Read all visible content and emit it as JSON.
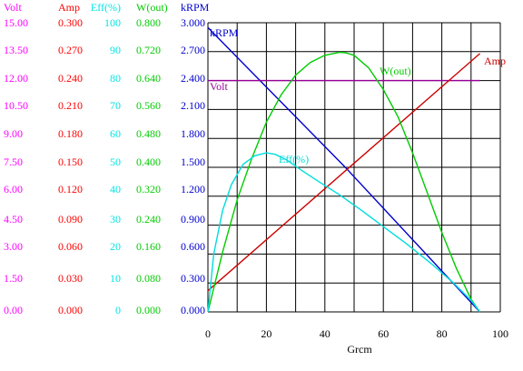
{
  "chart_data": {
    "type": "line",
    "xlabel": "Grcm",
    "x_ticks": [
      "0",
      "20",
      "40",
      "60",
      "80",
      "100"
    ],
    "xlim": [
      0,
      100
    ],
    "axis_scales": [
      {
        "key": "volt",
        "header": "Volt",
        "color": "#ff00ff",
        "min": 0,
        "max": 15,
        "ticks": [
          "15.00",
          "13.50",
          "12.00",
          "10.50",
          "9.00",
          "7.50",
          "6.00",
          "4.50",
          "3.00",
          "1.50",
          "0.00"
        ]
      },
      {
        "key": "amp",
        "header": "Amp",
        "color": "#ff0000",
        "min": 0,
        "max": 0.3,
        "ticks": [
          "0.300",
          "0.270",
          "0.240",
          "0.210",
          "0.180",
          "0.150",
          "0.120",
          "0.090",
          "0.060",
          "0.030",
          "0.000"
        ]
      },
      {
        "key": "eff",
        "header": "Eff(%)",
        "color": "#00e5e5",
        "min": 0,
        "max": 100,
        "ticks": [
          "100",
          "90",
          "80",
          "70",
          "60",
          "50",
          "40",
          "30",
          "20",
          "10",
          "0"
        ]
      },
      {
        "key": "wout",
        "header": "W(out)",
        "color": "#00cc00",
        "min": 0,
        "max": 0.8,
        "ticks": [
          "0.800",
          "0.720",
          "0.640",
          "0.560",
          "0.480",
          "0.400",
          "0.320",
          "0.240",
          "0.160",
          "0.080",
          "0.000"
        ]
      },
      {
        "key": "krpm",
        "header": "kRPM",
        "color": "#0000cc",
        "min": 0,
        "max": 3.0,
        "ticks": [
          "3.000",
          "2.700",
          "2.400",
          "2.100",
          "1.800",
          "1.500",
          "1.200",
          "0.900",
          "0.600",
          "0.300",
          "0.000"
        ]
      }
    ],
    "series": [
      {
        "name": "kRPM",
        "axis": "krpm",
        "color": "#0000cc",
        "x": [
          0,
          47,
          93
        ],
        "y": [
          2.95,
          1.5,
          0.0
        ]
      },
      {
        "name": "Volt",
        "axis": "volt",
        "color": "#990099",
        "x": [
          0,
          93
        ],
        "y": [
          12.0,
          12.0
        ]
      },
      {
        "name": "Amp",
        "axis": "amp",
        "color": "#cc0000",
        "x": [
          0,
          93
        ],
        "y": [
          0.022,
          0.268
        ]
      },
      {
        "name": "W(out)",
        "axis": "wout",
        "color": "#00cc00",
        "x": [
          0,
          5,
          10,
          15,
          20,
          25,
          30,
          35,
          40,
          45,
          47,
          50,
          55,
          60,
          65,
          70,
          75,
          80,
          85,
          90,
          93
        ],
        "y": [
          0.0,
          0.165,
          0.31,
          0.425,
          0.525,
          0.6,
          0.655,
          0.69,
          0.71,
          0.718,
          0.717,
          0.71,
          0.675,
          0.615,
          0.54,
          0.44,
          0.33,
          0.22,
          0.12,
          0.035,
          0.0
        ]
      },
      {
        "name": "Eff(%)",
        "axis": "eff",
        "color": "#00dddd",
        "x": [
          0,
          2,
          5,
          8,
          12,
          16,
          20,
          23,
          27,
          32,
          38,
          45,
          52,
          60,
          68,
          76,
          84,
          90,
          93
        ],
        "y": [
          0,
          20,
          35,
          44,
          51,
          54,
          55,
          54.5,
          52.5,
          49,
          45,
          40.5,
          35.5,
          29.5,
          23.5,
          17,
          10,
          4,
          0
        ]
      }
    ],
    "grid": true
  }
}
